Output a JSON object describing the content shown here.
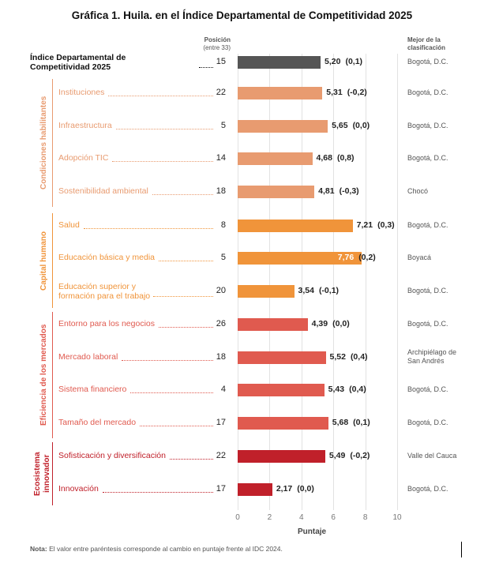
{
  "chart_data": {
    "type": "bar",
    "title": "Gráfica 1. Huila. en el Índice Departamental de Competitividad 2025",
    "position_header": "Posición",
    "position_subheader": "(entre 33)",
    "best_header": "Mejor de la clasificación",
    "xlabel": "Puntaje",
    "xlim": [
      0,
      10
    ],
    "xticks": [
      "0",
      "2",
      "4",
      "6",
      "8",
      "10"
    ],
    "grid": true,
    "note_bold": "Nota:",
    "note": " El valor entre paréntesis corresponde al cambio en puntaje frente al IDC 2024.",
    "groups": [
      {
        "name": "Condiciones habilitantes",
        "color": "#E89B70"
      },
      {
        "name": "Capital humano",
        "color": "#F0943A"
      },
      {
        "name": "Eficiencia de los mercados",
        "color": "#E05A4F"
      },
      {
        "name": "Ecosistema innovador",
        "color": "#C0202A"
      }
    ],
    "rows": [
      {
        "label": "Índice Departamental de Competitividad 2025",
        "position": "15",
        "value": 5.2,
        "value_label": "5,20",
        "change": "(0,1)",
        "best": "Bogotá, D.C.",
        "color": "#555555",
        "group": null
      },
      {
        "label": "Instituciones",
        "position": "22",
        "value": 5.31,
        "value_label": "5,31",
        "change": "(-0,2)",
        "best": "Bogotá, D.C.",
        "color": "#E89B70",
        "group": 0
      },
      {
        "label": "Infraestructura",
        "position": "5",
        "value": 5.65,
        "value_label": "5,65",
        "change": "(0,0)",
        "best": "Bogotá, D.C.",
        "color": "#E89B70",
        "group": 0
      },
      {
        "label": "Adopción TIC",
        "position": "14",
        "value": 4.68,
        "value_label": "4,68",
        "change": "(0,8)",
        "best": "Bogotá, D.C.",
        "color": "#E89B70",
        "group": 0
      },
      {
        "label": "Sostenibilidad ambiental",
        "position": "18",
        "value": 4.81,
        "value_label": "4,81",
        "change": "(-0,3)",
        "best": "Chocó",
        "color": "#E89B70",
        "group": 0
      },
      {
        "label": "Salud",
        "position": "8",
        "value": 7.21,
        "value_label": "7,21",
        "change": "(0,3)",
        "best": "Bogotá, D.C.",
        "color": "#F0943A",
        "group": 1
      },
      {
        "label": "Educación básica y media",
        "position": "5",
        "value": 7.76,
        "value_label": "7,76",
        "change": "(0,2)",
        "best": "Boyacá",
        "color": "#F0943A",
        "group": 1
      },
      {
        "label": "Educación superior y formación para el trabajo",
        "position": "20",
        "value": 3.54,
        "value_label": "3,54",
        "change": "(-0,1)",
        "best": "Bogotá, D.C.",
        "color": "#F0943A",
        "group": 1
      },
      {
        "label": "Entorno para los negocios",
        "position": "26",
        "value": 4.39,
        "value_label": "4,39",
        "change": "(0,0)",
        "best": "Bogotá, D.C.",
        "color": "#E05A4F",
        "group": 2
      },
      {
        "label": "Mercado laboral",
        "position": "18",
        "value": 5.52,
        "value_label": "5,52",
        "change": "(0,4)",
        "best": "Archipiélago de San Andrés",
        "color": "#E05A4F",
        "group": 2
      },
      {
        "label": "Sistema financiero",
        "position": "4",
        "value": 5.43,
        "value_label": "5,43",
        "change": "(0,4)",
        "best": "Bogotá, D.C.",
        "color": "#E05A4F",
        "group": 2
      },
      {
        "label": "Tamaño del mercado",
        "position": "17",
        "value": 5.68,
        "value_label": "5,68",
        "change": "(0,1)",
        "best": "Bogotá, D.C.",
        "color": "#E05A4F",
        "group": 2
      },
      {
        "label": "Sofisticación y diversificación",
        "position": "22",
        "value": 5.49,
        "value_label": "5,49",
        "change": "(-0,2)",
        "best": "Valle del Cauca",
        "color": "#C0202A",
        "group": 3
      },
      {
        "label": "Innovación",
        "position": "17",
        "value": 2.17,
        "value_label": "2,17",
        "change": "(0,0)",
        "best": "Bogotá, D.C.",
        "color": "#C0202A",
        "group": 3
      }
    ]
  }
}
